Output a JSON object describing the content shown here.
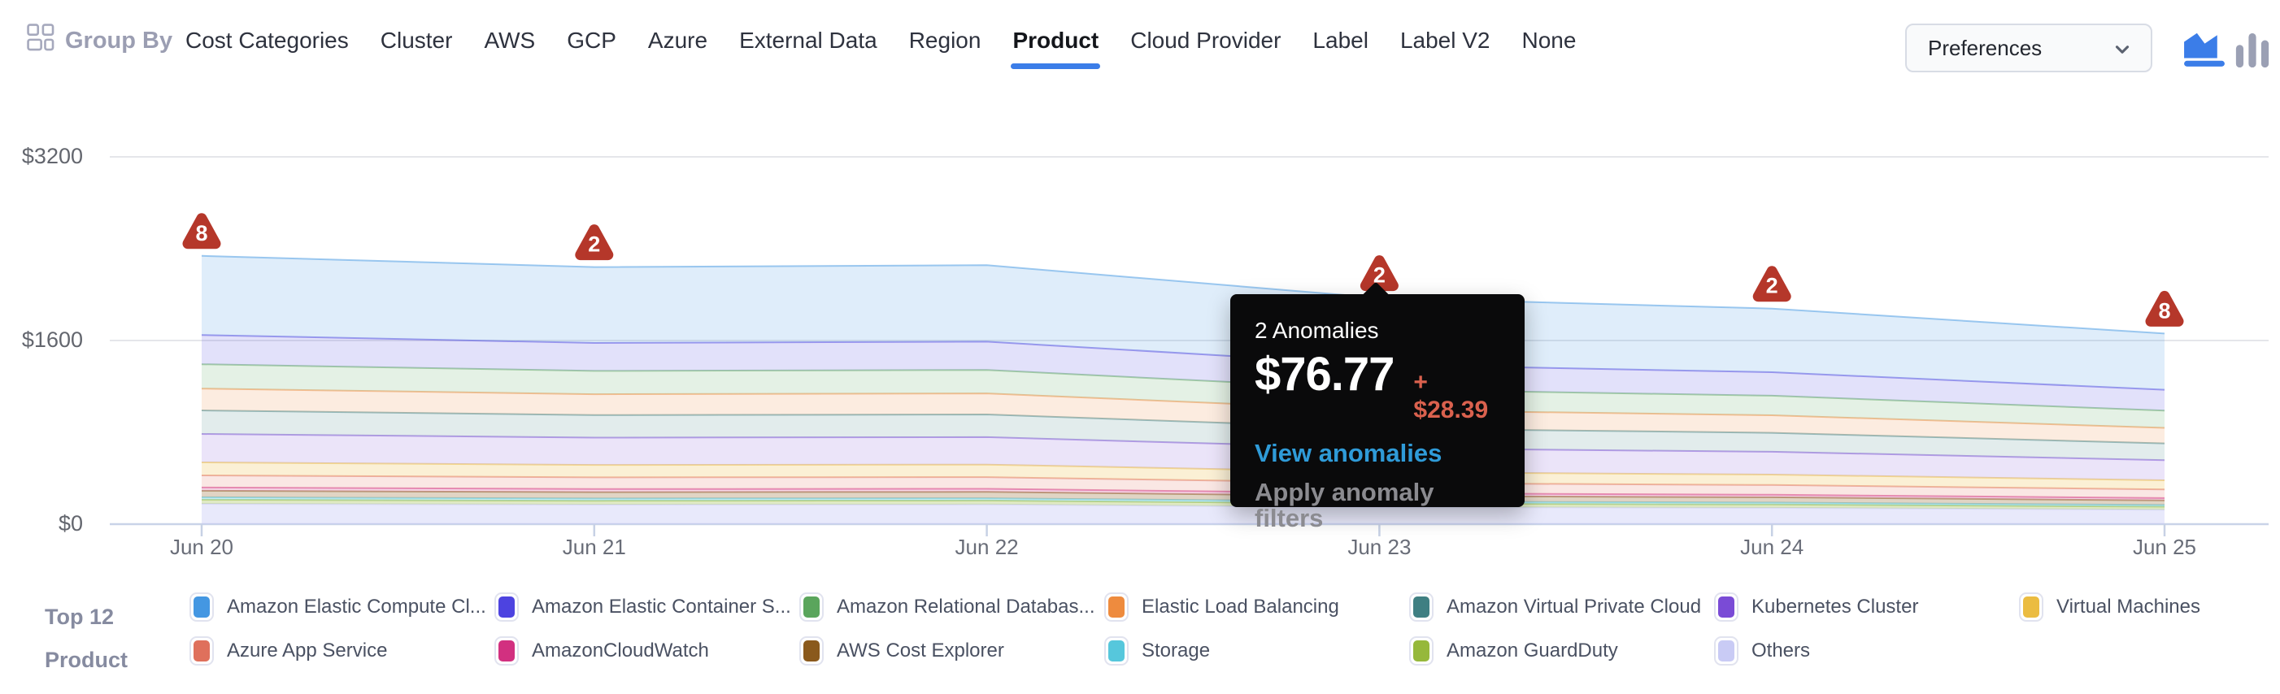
{
  "header": {
    "group_by_label": "Group By",
    "tabs": [
      {
        "label": "Cost Categories",
        "active": false
      },
      {
        "label": "Cluster",
        "active": false
      },
      {
        "label": "AWS",
        "active": false
      },
      {
        "label": "GCP",
        "active": false
      },
      {
        "label": "Azure",
        "active": false
      },
      {
        "label": "External Data",
        "active": false
      },
      {
        "label": "Region",
        "active": false
      },
      {
        "label": "Product",
        "active": true
      },
      {
        "label": "Cloud Provider",
        "active": false
      },
      {
        "label": "Label",
        "active": false
      },
      {
        "label": "Label V2",
        "active": false
      },
      {
        "label": "None",
        "active": false
      }
    ],
    "preferences": {
      "label": "Preferences"
    },
    "icons": {
      "group_by": "grid-icon",
      "preferences_chevron": "chevron-down-icon",
      "area_view": "area-chart-icon",
      "bar_view": "bar-chart-icon"
    },
    "accent_color": "#3B7DE8",
    "inactive_icon_color": "#9BA0B4"
  },
  "tooltip": {
    "title": "2 Anomalies",
    "amount": "$76.77",
    "delta": "+ $28.39",
    "view_link": "View anomalies",
    "apply_link": "Apply anomaly filters",
    "delta_color": "#DA614E",
    "link_color": "#2F9BD8"
  },
  "legend": {
    "title_line1": "Top 12",
    "title_line2": "Product"
  },
  "chart_data": {
    "type": "area",
    "stacked": true,
    "x_labels": [
      "Jun 20",
      "Jun 21",
      "Jun 22",
      "Jun 23",
      "Jun 24",
      "Jun 25"
    ],
    "y_ticks": [
      {
        "label": "$0",
        "value": 0
      },
      {
        "label": "$1600",
        "value": 1600
      },
      {
        "label": "$3200",
        "value": 3200
      }
    ],
    "y_range": [
      0,
      3200
    ],
    "grid": "horizontal",
    "legend_position": "bottom",
    "series": [
      {
        "name": "Amazon Elastic Compute Cl...",
        "color": "#4497E2",
        "values": [
          690,
          661,
          666,
          582,
          554,
          490
        ]
      },
      {
        "name": "Amazon Elastic Container S...",
        "color": "#4D43E0",
        "values": [
          255,
          244,
          246,
          215,
          205,
          181
        ]
      },
      {
        "name": "Amazon Relational Databas...",
        "color": "#5AA55C",
        "values": [
          212,
          203,
          205,
          179,
          170,
          151
        ]
      },
      {
        "name": "Elastic Load Balancing",
        "color": "#EE8B3E",
        "values": [
          190,
          182,
          183,
          160,
          153,
          135
        ]
      },
      {
        "name": "Amazon Virtual Private Cloud",
        "color": "#3F7F82",
        "values": [
          205,
          196,
          198,
          173,
          165,
          146
        ]
      },
      {
        "name": "Kubernetes Cluster",
        "color": "#7A4BD6",
        "values": [
          248,
          238,
          239,
          209,
          199,
          176
        ]
      },
      {
        "name": "Virtual Machines",
        "color": "#EBBC41",
        "values": [
          113,
          108,
          109,
          95,
          91,
          80
        ]
      },
      {
        "name": "Azure App Service",
        "color": "#DF705C",
        "values": [
          106,
          102,
          102,
          89,
          85,
          75
        ]
      },
      {
        "name": "AmazonCloudWatch",
        "color": "#D23080",
        "values": [
          28,
          27,
          27,
          24,
          22,
          20
        ]
      },
      {
        "name": "AWS Cost Explorer",
        "color": "#8A591C",
        "values": [
          57,
          55,
          55,
          48,
          46,
          40
        ]
      },
      {
        "name": "Storage",
        "color": "#56C7DC",
        "values": [
          21,
          20,
          20,
          18,
          17,
          15
        ]
      },
      {
        "name": "Amazon GuardDuty",
        "color": "#96B83B",
        "values": [
          36,
          34,
          35,
          30,
          29,
          26
        ]
      },
      {
        "name": "Others",
        "color": "#C9CBF5",
        "values": [
          177,
          170,
          171,
          149,
          142,
          126
        ]
      }
    ],
    "anomalies": [
      {
        "x_label": "Jun 20",
        "count": 8
      },
      {
        "x_label": "Jun 21",
        "count": 2
      },
      {
        "x_label": "Jun 23",
        "count": 2
      },
      {
        "x_label": "Jun 24",
        "count": 2
      },
      {
        "x_label": "Jun 25",
        "count": 8
      }
    ],
    "anomaly_color": "#B5372A",
    "tooltip_anchor": "Jun 23"
  }
}
